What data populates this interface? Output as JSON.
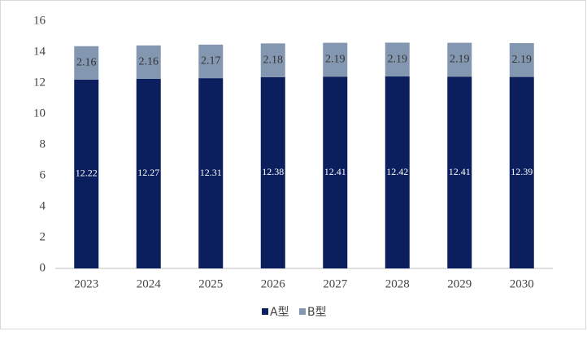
{
  "chart_data": {
    "type": "bar",
    "stacked": true,
    "categories": [
      "2023",
      "2024",
      "2025",
      "2026",
      "2027",
      "2028",
      "2029",
      "2030"
    ],
    "series": [
      {
        "name": "A型",
        "color": "#0b1f5e",
        "values": [
          12.22,
          12.27,
          12.31,
          12.38,
          12.41,
          12.42,
          12.41,
          12.39
        ]
      },
      {
        "name": "B型",
        "color": "#8497b0",
        "values": [
          2.16,
          2.16,
          2.17,
          2.18,
          2.19,
          2.19,
          2.19,
          2.19
        ]
      }
    ],
    "ylim": [
      0,
      16
    ],
    "yticks": [
      0,
      2,
      4,
      6,
      8,
      10,
      12,
      14,
      16
    ],
    "grid": false,
    "legend": "bottom"
  }
}
